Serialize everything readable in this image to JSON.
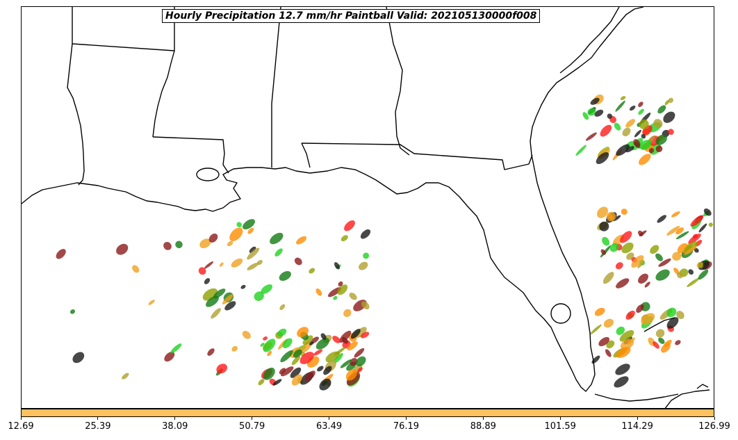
{
  "title": "Hourly Precipitation 12.7 mm/hr Paintball Valid: 202105130000f008",
  "colorbar": {
    "color": "#ffc15e",
    "ticks": [
      "12.69",
      "25.39",
      "38.09",
      "50.79",
      "63.49",
      "76.19",
      "88.89",
      "101.59",
      "114.29",
      "126.99"
    ]
  },
  "map": {
    "type": "paintball precipitation map",
    "region": "Gulf of Mexico / Southeastern United States",
    "member_colors": [
      "#ff1a1a",
      "#ff8c00",
      "#1fd21f",
      "#8b1a1a",
      "#8fa000",
      "#1a1a1a",
      "#137a13",
      "#f0a020",
      "#b0a030"
    ]
  }
}
